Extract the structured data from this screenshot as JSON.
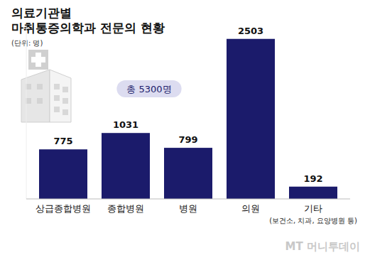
{
  "chart_data": {
    "type": "bar",
    "title": [
      "의료기관별",
      "마취통증의학과 전문의 현황"
    ],
    "subtitle": "(단위: 명)",
    "annotations": [
      "총 5300명"
    ],
    "categories": [
      "상급종합병원",
      "종합병원",
      "병원",
      "의원",
      "기타"
    ],
    "category_notes": [
      null,
      null,
      null,
      null,
      "(보건소, 치과, 요양병원 등)"
    ],
    "values": [
      775,
      1031,
      799,
      2503,
      192
    ],
    "color": "#1b1b6b",
    "ylim": [
      0,
      2700
    ],
    "data_labels": true,
    "tick_labels": "x",
    "grid": false,
    "watermark": "MT 머니투데이"
  }
}
